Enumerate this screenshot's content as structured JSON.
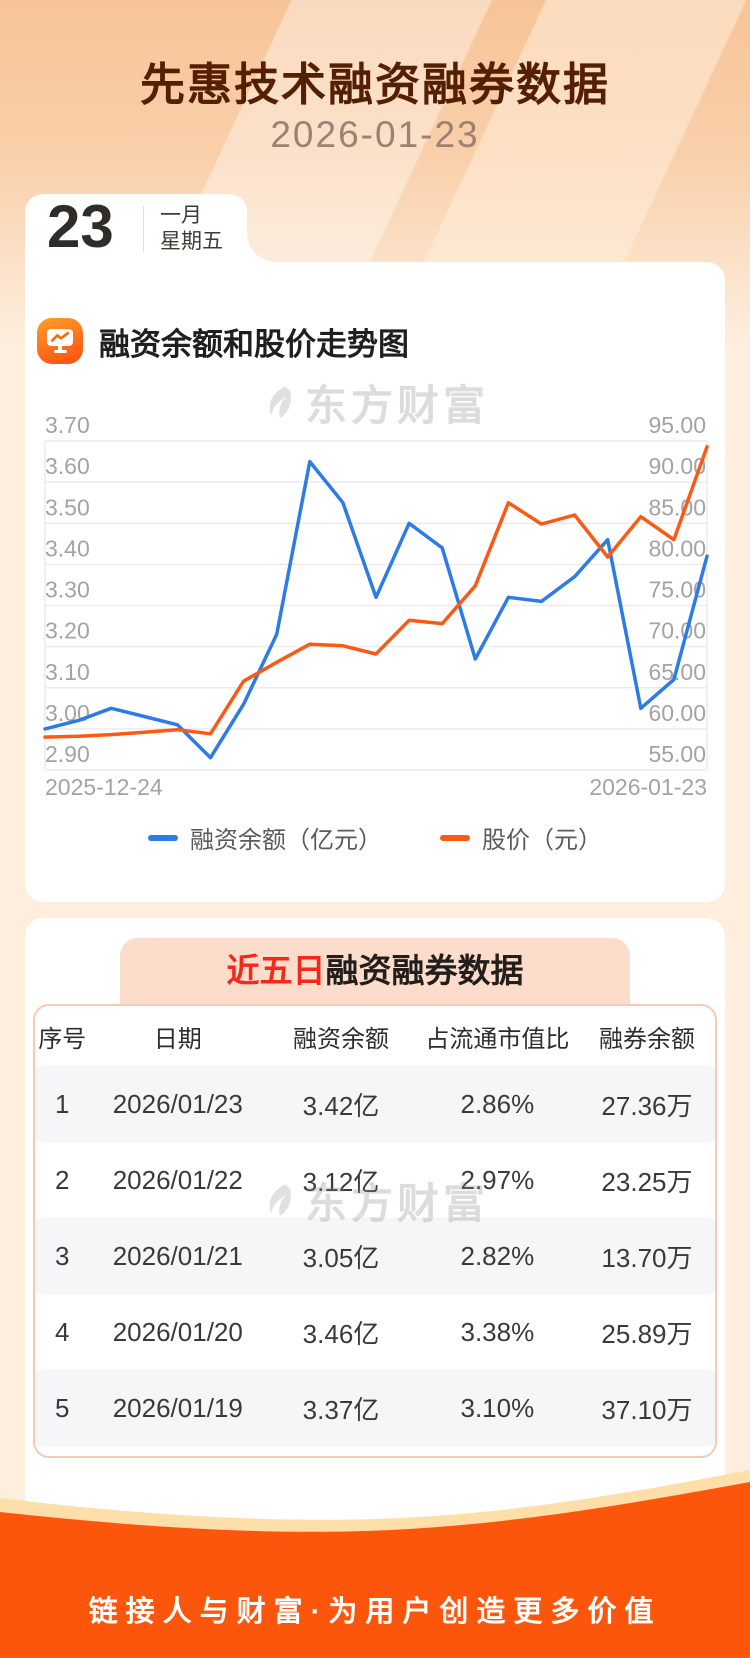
{
  "header": {
    "title": "先惠技术融资融券数据",
    "date": "2026-01-23"
  },
  "calendar": {
    "day": "23",
    "month": "一月",
    "weekday": "星期五"
  },
  "chart_section": {
    "title": "融资余额和股价走势图",
    "watermark": "东方财富"
  },
  "chart_data": {
    "type": "line",
    "title": "融资余额和股价走势图",
    "x_labels": [
      "2025-12-24",
      "2026-01-23"
    ],
    "grid": true,
    "legend_position": "bottom",
    "left_axis": {
      "min": 2.9,
      "max": 3.7,
      "step": 0.1,
      "ticks": [
        "3.70",
        "3.60",
        "3.50",
        "3.40",
        "3.30",
        "3.20",
        "3.10",
        "3.00",
        "2.90"
      ]
    },
    "right_axis": {
      "min": 55,
      "max": 95,
      "step": 5,
      "ticks": [
        "95.00",
        "90.00",
        "85.00",
        "80.00",
        "75.00",
        "70.00",
        "65.00",
        "60.00",
        "55.00"
      ]
    },
    "series": [
      {
        "name": "融资余额（亿元）",
        "axis": "left",
        "color": "#2d7be5",
        "values": [
          3.0,
          3.02,
          3.05,
          3.03,
          3.01,
          2.93,
          3.06,
          3.23,
          3.65,
          3.55,
          3.32,
          3.5,
          3.44,
          3.17,
          3.32,
          3.31,
          3.37,
          3.46,
          3.05,
          3.12,
          3.42
        ]
      },
      {
        "name": "股价（元）",
        "axis": "right",
        "color": "#fb5a16",
        "values": [
          59.0,
          59.1,
          59.3,
          59.6,
          59.9,
          59.4,
          65.8,
          68.1,
          70.3,
          70.1,
          69.1,
          73.2,
          72.8,
          77.4,
          87.5,
          84.9,
          86.0,
          80.9,
          85.8,
          83.0,
          94.3
        ]
      }
    ]
  },
  "table_section": {
    "title_highlight": "近五日",
    "title_rest": "融资融券数据",
    "watermark": "东方财富",
    "columns": [
      "序号",
      "日期",
      "融资余额",
      "占流通市值比",
      "融券余额"
    ],
    "rows": [
      {
        "index": "1",
        "date": "2026/01/23",
        "balance": "3.42亿",
        "ratio": "2.86%",
        "short_balance": "27.36万"
      },
      {
        "index": "2",
        "date": "2026/01/22",
        "balance": "3.12亿",
        "ratio": "2.97%",
        "short_balance": "23.25万"
      },
      {
        "index": "3",
        "date": "2026/01/21",
        "balance": "3.05亿",
        "ratio": "2.82%",
        "short_balance": "13.70万"
      },
      {
        "index": "4",
        "date": "2026/01/20",
        "balance": "3.46亿",
        "ratio": "3.38%",
        "short_balance": "25.89万"
      },
      {
        "index": "5",
        "date": "2026/01/19",
        "balance": "3.37亿",
        "ratio": "3.10%",
        "short_balance": "37.10万"
      }
    ]
  },
  "footer": {
    "slogan": "链接人与财富·为用户创造更多价值"
  },
  "colors": {
    "line_blue": "#2d7be5",
    "line_orange": "#fb5a16",
    "highlight_red": "#f3281d",
    "footer_orange": "#fb560b",
    "footer_cream": "#ffdfa9",
    "pill_pink": "#fcdccb",
    "table_border_pink": "#f7cab6"
  }
}
